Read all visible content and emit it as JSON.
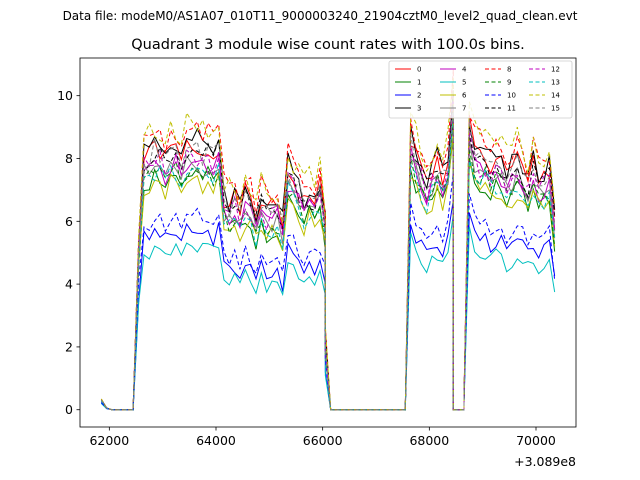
{
  "suptitle": "Data file: modeM0/AS1A07_010T11_9000003240_21904cztM0_level2_quad_clean.evt",
  "chart_data": {
    "type": "line",
    "title": "Quadrant 3 module wise count rates with 100.0s bins.",
    "xlabel": "",
    "ylabel": "",
    "offset_text": "+3.089e8",
    "x_offset": 308900000,
    "xlim": [
      308961450,
      308970750
    ],
    "ylim": [
      -0.55,
      11.2
    ],
    "xticks": [
      62000,
      64000,
      66000,
      68000,
      70000
    ],
    "yticks": [
      0,
      2,
      4,
      6,
      8,
      10
    ],
    "grid": false,
    "legend_placement": "top-right",
    "segments": [
      {
        "x_start": 308961850,
        "x_end": 308962450,
        "values": [
          0.3,
          0.05,
          0.0,
          0.0,
          0.0,
          0.0,
          0.0
        ]
      },
      {
        "x_start": 308962450,
        "x_end": 308966050,
        "values": [
          0.2,
          5.0,
          7.6,
          7.6,
          7.9,
          7.8,
          7.5,
          7.8,
          7.8,
          7.5,
          7.9,
          7.7,
          7.9,
          7.7,
          7.8,
          7.6,
          8.0,
          6.4,
          6.1,
          6.3,
          6.0,
          6.5,
          6.2,
          5.7,
          6.4,
          5.9,
          6.0,
          6.1,
          5.5,
          7.2,
          6.9,
          6.6,
          6.2,
          6.5,
          6.3,
          6.7,
          5.7
        ]
      },
      {
        "x_start": 308966050,
        "x_end": 308967550,
        "values": [
          2.0,
          0.0,
          0.0,
          0.0,
          0.0,
          0.0,
          0.0,
          0.0,
          0.0,
          0.0,
          0.0,
          0.0,
          0.0,
          0.0,
          0.0,
          0.0
        ]
      },
      {
        "x_start": 308967550,
        "x_end": 308968450,
        "values": [
          0.1,
          8.2,
          7.6,
          7.2,
          6.8,
          7.1,
          7.4,
          7.0,
          7.5,
          9.5
        ]
      },
      {
        "x_start": 308968450,
        "x_end": 308968650,
        "values": [
          0.0,
          0.0,
          0.0
        ]
      },
      {
        "x_start": 308968650,
        "x_end": 308970350,
        "values": [
          0.3,
          8.6,
          7.9,
          7.6,
          7.6,
          7.3,
          7.5,
          7.4,
          7.0,
          7.2,
          7.5,
          7.2,
          6.8,
          7.4,
          6.9,
          7.0,
          7.2,
          5.6
        ]
      }
    ],
    "series": [
      {
        "name": "0",
        "color": "#ff0000",
        "dash": "solid",
        "factor": 1.06,
        "seed": 1
      },
      {
        "name": "1",
        "color": "#008000",
        "dash": "solid",
        "factor": 0.95,
        "seed": 2
      },
      {
        "name": "2",
        "color": "#0000ff",
        "dash": "solid",
        "factor": 0.72,
        "seed": 3
      },
      {
        "name": "3",
        "color": "#000000",
        "dash": "solid",
        "factor": 1.09,
        "seed": 4
      },
      {
        "name": "4",
        "color": "#bf00bf",
        "dash": "solid",
        "factor": 1.0,
        "seed": 5
      },
      {
        "name": "5",
        "color": "#00bfbf",
        "dash": "solid",
        "factor": 0.66,
        "seed": 6
      },
      {
        "name": "6",
        "color": "#bfbf00",
        "dash": "solid",
        "factor": 0.93,
        "seed": 7
      },
      {
        "name": "7",
        "color": "#808080",
        "dash": "solid",
        "factor": 0.99,
        "seed": 8
      },
      {
        "name": "8",
        "color": "#ff0000",
        "dash": "dashed",
        "factor": 1.13,
        "seed": 9
      },
      {
        "name": "9",
        "color": "#008000",
        "dash": "dashed",
        "factor": 0.97,
        "seed": 10
      },
      {
        "name": "10",
        "color": "#0000ff",
        "dash": "dashed",
        "factor": 0.78,
        "seed": 11
      },
      {
        "name": "11",
        "color": "#000000",
        "dash": "dashed",
        "factor": 1.04,
        "seed": 12
      },
      {
        "name": "12",
        "color": "#bf00bf",
        "dash": "dashed",
        "factor": 1.02,
        "seed": 13
      },
      {
        "name": "13",
        "color": "#00bfbf",
        "dash": "dashed",
        "factor": 0.96,
        "seed": 14
      },
      {
        "name": "14",
        "color": "#bfbf00",
        "dash": "dashed",
        "factor": 1.15,
        "seed": 15
      },
      {
        "name": "15",
        "color": "#808080",
        "dash": "dashed",
        "factor": 1.05,
        "seed": 16
      }
    ]
  }
}
